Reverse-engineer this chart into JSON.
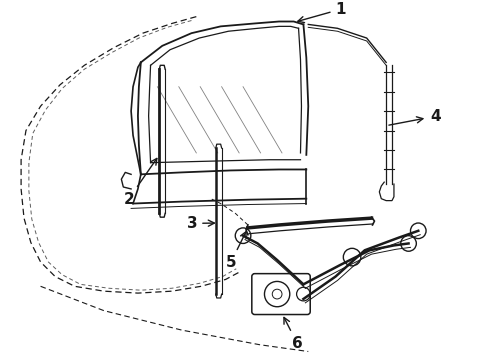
{
  "background_color": "#ffffff",
  "line_color": "#1a1a1a",
  "label_color": "#000000",
  "figsize": [
    4.9,
    3.6
  ],
  "dpi": 100,
  "label_fontsize": 10
}
